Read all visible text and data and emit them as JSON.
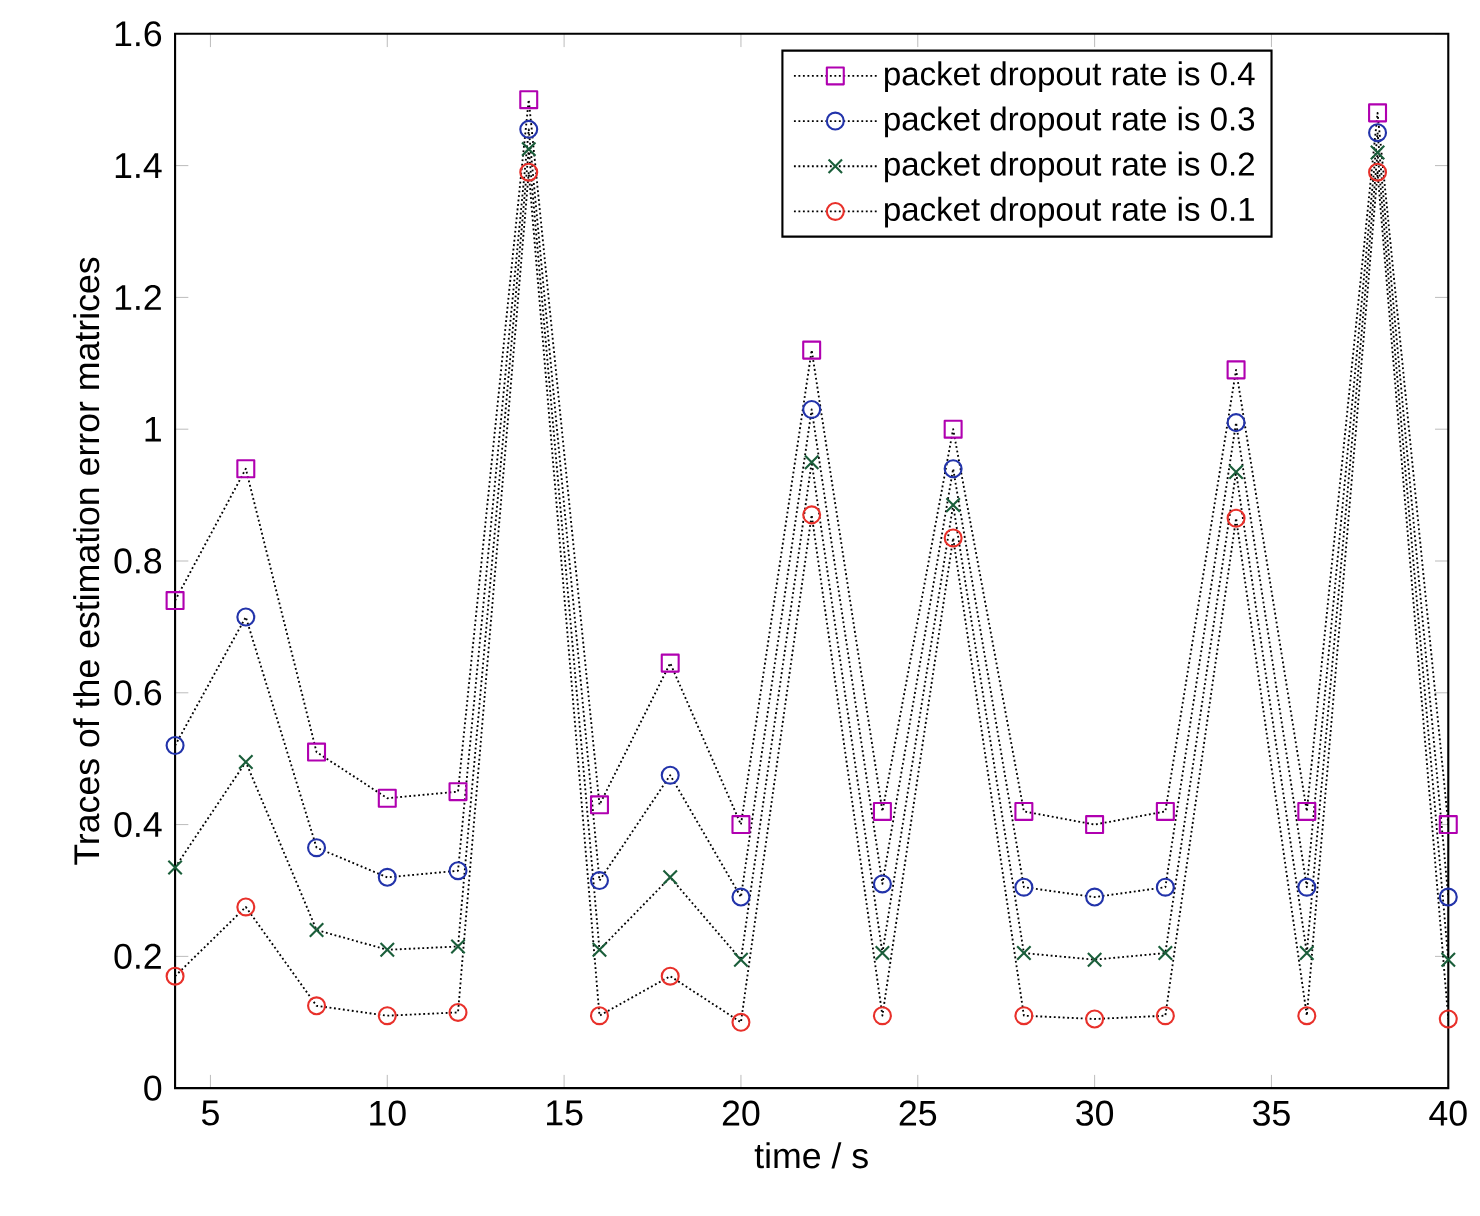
{
  "chart_data": {
    "type": "line",
    "xlabel": "time / s",
    "ylabel": "Traces of the estimation error matrices",
    "x": [
      4,
      6,
      8,
      10,
      12,
      14,
      16,
      18,
      20,
      22,
      24,
      26,
      28,
      30,
      32,
      34,
      36,
      38,
      40
    ],
    "series": [
      {
        "name": "packet dropout rate is 0.4",
        "color": "#b000b0",
        "marker": "square",
        "values": [
          0.74,
          0.94,
          0.51,
          0.44,
          0.45,
          1.5,
          0.43,
          0.645,
          0.4,
          1.12,
          0.42,
          1.0,
          0.42,
          0.4,
          0.42,
          1.09,
          0.42,
          1.48,
          0.4
        ]
      },
      {
        "name": "packet dropout rate is 0.3",
        "color": "#2233aa",
        "marker": "circle",
        "values": [
          0.52,
          0.715,
          0.365,
          0.32,
          0.33,
          1.455,
          0.315,
          0.475,
          0.29,
          1.03,
          0.31,
          0.94,
          0.305,
          0.29,
          0.305,
          1.01,
          0.305,
          1.45,
          0.29
        ]
      },
      {
        "name": "packet dropout rate is 0.2",
        "color": "#1a5e3a",
        "marker": "cross",
        "values": [
          0.335,
          0.495,
          0.24,
          0.21,
          0.215,
          1.425,
          0.21,
          0.32,
          0.195,
          0.95,
          0.205,
          0.885,
          0.205,
          0.195,
          0.205,
          0.935,
          0.205,
          1.42,
          0.195
        ]
      },
      {
        "name": "packet dropout rate is 0.1",
        "color": "#e8302a",
        "marker": "circle",
        "values": [
          0.17,
          0.275,
          0.125,
          0.11,
          0.115,
          1.39,
          0.11,
          0.17,
          0.1,
          0.87,
          0.11,
          0.835,
          0.11,
          0.105,
          0.11,
          0.865,
          0.11,
          1.39,
          0.105
        ]
      }
    ],
    "line_style": "dotted",
    "grid": false,
    "legend": "top right",
    "xlim": [
      4,
      40
    ],
    "xticks": [
      5,
      10,
      15,
      20,
      25,
      30,
      35,
      40
    ],
    "ylim": [
      0,
      1.6
    ],
    "yticks": [
      0,
      0.2,
      0.4,
      0.6,
      0.8,
      1,
      1.2,
      1.4,
      1.6
    ]
  }
}
